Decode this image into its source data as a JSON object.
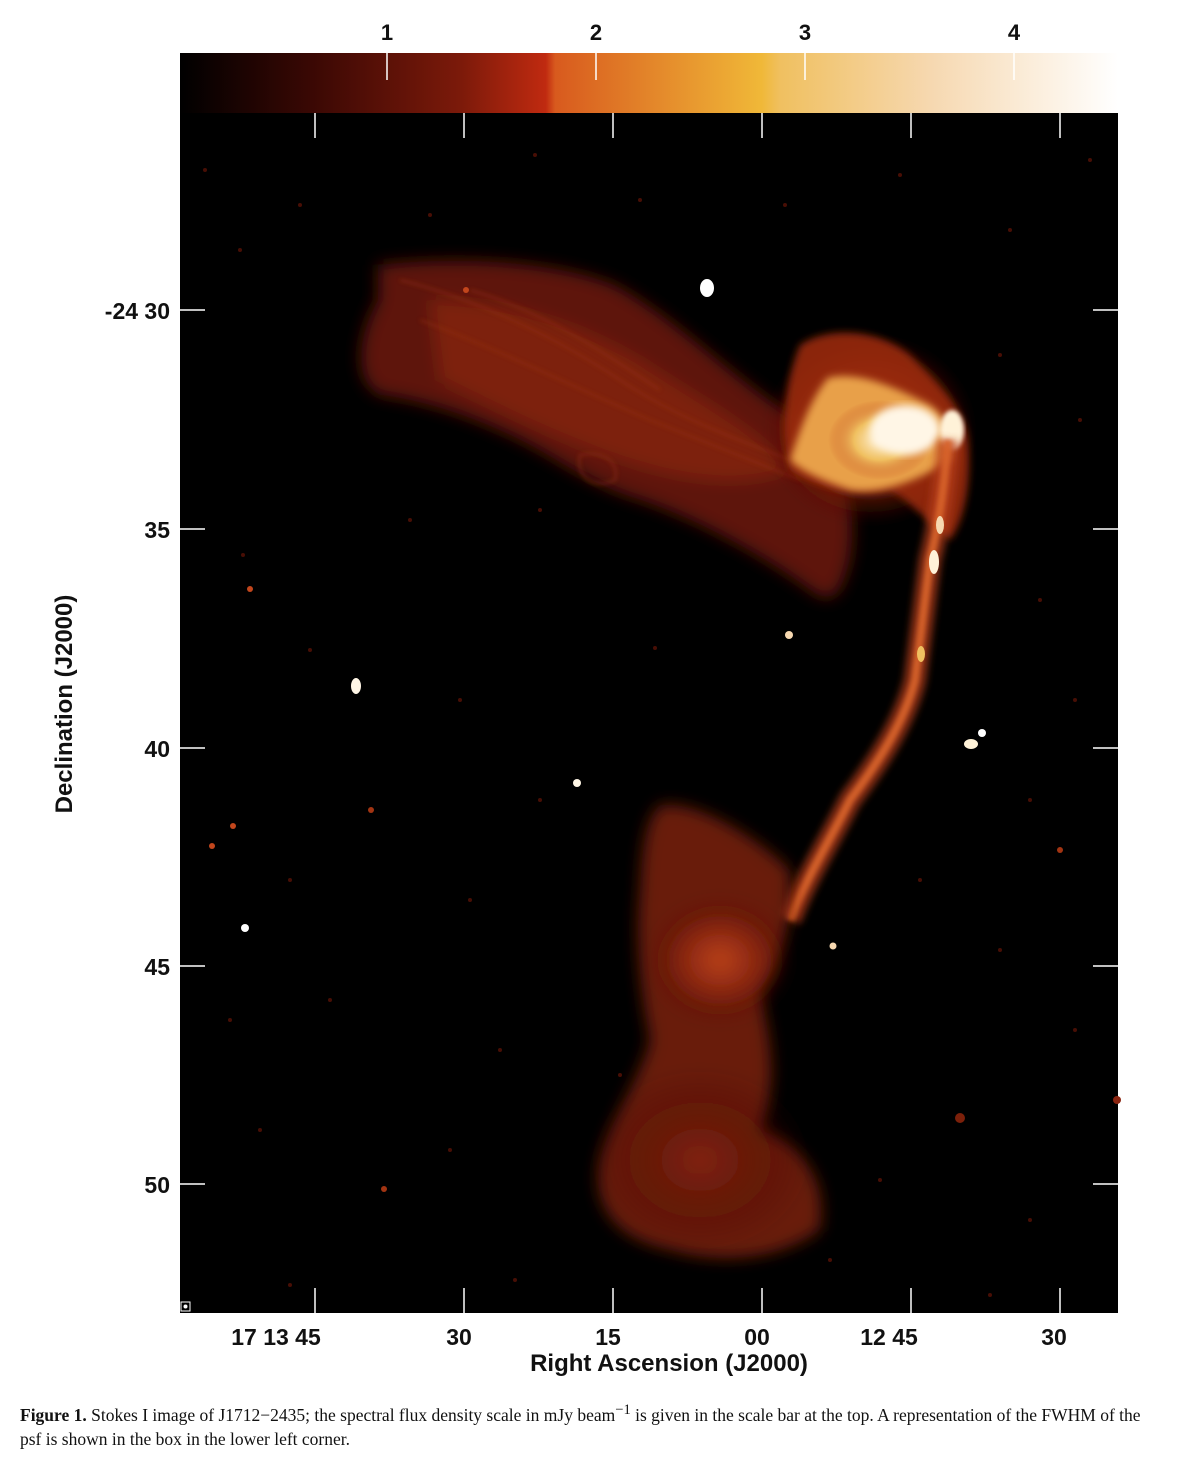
{
  "figure": {
    "colorbar": {
      "ticks": [
        "1",
        "2",
        "3",
        "4"
      ],
      "colors": [
        "#000000",
        "#3a0804",
        "#7c1a0a",
        "#c02a10",
        "#e07a28",
        "#f0b838",
        "#f6d8b0",
        "#ffffff"
      ]
    },
    "y_axis": {
      "label": "Declination (J2000)",
      "ticks": [
        "-24 30",
        "35",
        "40",
        "45",
        "50"
      ]
    },
    "x_axis": {
      "label": "Right Ascension (J2000)",
      "ticks": [
        "17 13 45",
        "30",
        "15",
        "00",
        "12 45",
        "30"
      ]
    },
    "image": {
      "background": "#000000",
      "emission_colors": [
        "#4a0c04",
        "#8a2410",
        "#c2461c",
        "#f0c060",
        "#fff2d8"
      ]
    },
    "caption": {
      "label": "Figure 1.",
      "text_before_superscript": "Stokes I image of J1712−2435; the spectral flux density scale in mJy beam",
      "superscript": "−1",
      "text_after_superscript": " is given in the scale bar at the top. A representation of the FWHM of the psf is shown in the box in the lower left corner."
    }
  }
}
